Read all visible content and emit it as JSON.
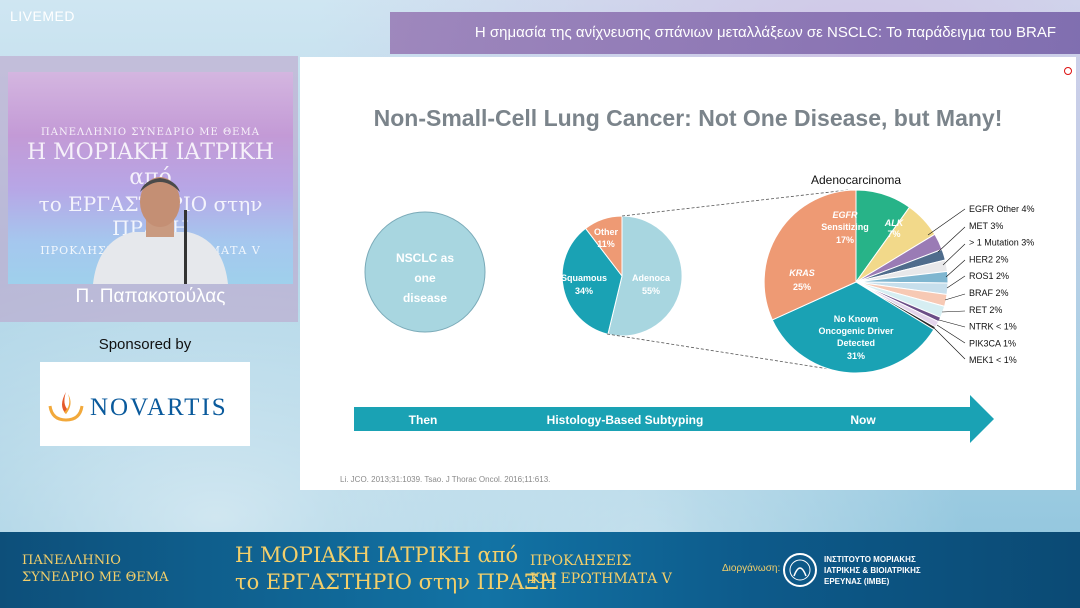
{
  "brand": {
    "live": "LIVE",
    "med": "MED"
  },
  "header": {
    "title": "Η σημασία της ανίχνευσης σπάνιων μεταλλάξεων σε NSCLC: Το παράδειγμα του BRAF"
  },
  "video": {
    "banner_line1": "ΠΑΝΕΛΛΗΝΙΟ ΣΥΝΕΔΡΙΟ ΜΕ ΘΕΜΑ",
    "banner_line2": "Η ΜΟΡΙΑΚΗ ΙΑΤΡΙΚΗ από",
    "banner_line3": "το ΕΡΓΑΣΤΗΡΙΟ στην ΠΡΑΞΗ",
    "banner_line4": "ΠΡΟΚΛΗΣΕΙΣ ΚΑΙ ΕΡΩΤΗΜΑΤΑ V",
    "speaker_name": "Π. Παπακοτούλας"
  },
  "sponsor": {
    "label": "Sponsored by",
    "name": "NOVARTIS",
    "brand_color": "#0a5a9c"
  },
  "slide": {
    "title": "Non-Small-Cell Lung Cancer: Not One Disease, but Many!",
    "nsclc_line1": "NSCLC as",
    "nsclc_line2": "one",
    "nsclc_line3": "disease",
    "histology": {
      "other_label": "Other",
      "other_value": "11%",
      "squamous_label": "Squamous",
      "squamous_value": "34%",
      "adenoca_label": "Adenoca",
      "adenoca_value": "55%"
    },
    "adeno": {
      "title": "Adenocarcinoma",
      "egfr_label1": "EGFR",
      "egfr_label2": "Sensitizing",
      "egfr_value": "17%",
      "alk_label": "ALK",
      "alk_value": "7%",
      "kras_label": "KRAS",
      "kras_value": "25%",
      "nokd_line1": "No Known",
      "nokd_line2": "Oncogenic Driver",
      "nokd_line3": "Detected",
      "nokd_value": "31%",
      "legend": [
        "EGFR Other 4%",
        "MET 3%",
        "> 1 Mutation 3%",
        "HER2 2%",
        "ROS1 2%",
        "BRAF 2%",
        "RET 2%",
        "NTRK < 1%",
        "PIK3CA 1%",
        "MEK1 < 1%"
      ]
    },
    "arrow": {
      "then": "Then",
      "middle": "Histology-Based Subtyping",
      "now": "Now"
    },
    "citation": "Li. JCO. 2013;31:1039. Tsao. J Thorac Oncol. 2016;11:613."
  },
  "footer": {
    "conf_line1": "ΠΑΝΕΛΛΗΝΙΟ",
    "conf_line2": "ΣΥΝΕΔΡΙΟ ΜΕ ΘΕΜΑ",
    "main_line1": "Η ΜΟΡΙΑΚΗ ΙΑΤΡΙΚΗ από",
    "main_line2": "το ΕΡΓΑΣΤΗΡΙΟ στην ΠΡΑΞΗ",
    "sub_line1": "ΠΡΟΚΛΗΣΕΙΣ",
    "sub_line2": "ΚΑΙ ΕΡΩΤΗΜΑΤΑ V",
    "organizer_label": "Διοργάνωση:",
    "org_line1": "ΙΝΣΤΙΤΟΥΤΟ ΜΟΡΙΑΚΗΣ",
    "org_line2": "ΙΑΤΡΙΚΗΣ & ΒΙΟΙΑΤΡΙΚΗΣ",
    "org_line3": "ΕΡΕΥΝΑΣ (ΙΜΒΕ)"
  },
  "colors": {
    "teal": "#1aa2b4",
    "light_blue": "#a8d6e0",
    "orange": "#ee9a74",
    "green": "#27b388",
    "yellow": "#f2d98a",
    "purple": "#9a7bb5",
    "gold": "#f3cf6a"
  }
}
